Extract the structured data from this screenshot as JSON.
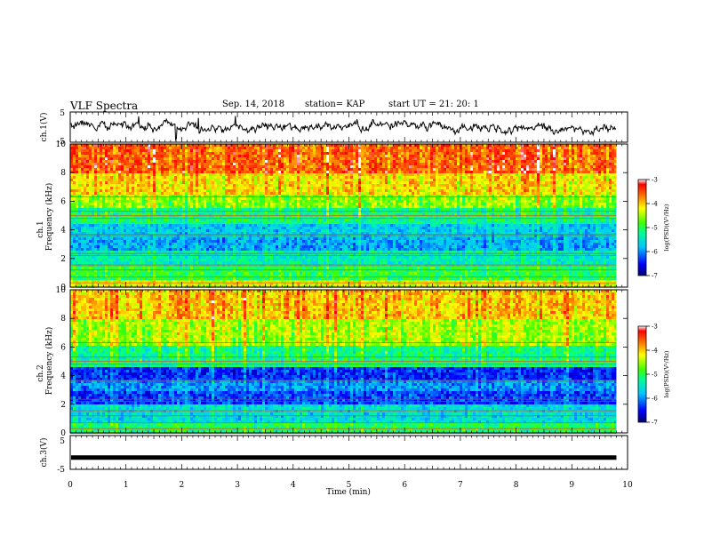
{
  "header": {
    "title": "VLF Spectra",
    "date": "Sep. 14, 2018",
    "station": "station= KAP",
    "start_ut": "start  UT =   21: 20: 1"
  },
  "chart_data": [
    {
      "type": "line",
      "panel": "ch1-waveform",
      "ylabel": "ch.1(V)",
      "ylim": [
        -5,
        5
      ],
      "yticks": [
        "5",
        "-5"
      ],
      "xlim": [
        0,
        10
      ],
      "x_min_step": 0.1,
      "y_envelope_approx": [
        -2,
        2
      ]
    },
    {
      "type": "heatmap",
      "panel": "ch1-spectrogram",
      "ylabel_channel": "ch.1",
      "ylabel": "Frequency (kHz)",
      "ylim": [
        0,
        10
      ],
      "yticks": [
        "0",
        "2",
        "4",
        "6",
        "8",
        "10"
      ],
      "xlim": [
        0,
        9.8
      ],
      "colorbar": {
        "label": "log(PSD)(V²/Hz)",
        "range": [
          -7,
          -3
        ],
        "ticks": [
          "-3",
          "-4",
          "-5",
          "-6",
          "-7"
        ]
      },
      "band_levels_by_freq_kHz": [
        {
          "f": [
            0.0,
            0.5
          ],
          "level": -4.3
        },
        {
          "f": [
            0.5,
            1.5
          ],
          "level": -5.0
        },
        {
          "f": [
            1.5,
            2.5
          ],
          "level": -5.4
        },
        {
          "f": [
            2.5,
            3.5
          ],
          "level": -5.9
        },
        {
          "f": [
            3.5,
            4.5
          ],
          "level": -5.7
        },
        {
          "f": [
            4.5,
            5.5
          ],
          "level": -5.2
        },
        {
          "f": [
            5.5,
            6.5
          ],
          "level": -4.6
        },
        {
          "f": [
            6.5,
            8.0
          ],
          "level": -4.1
        },
        {
          "f": [
            8.0,
            10.0
          ],
          "level": -3.6
        }
      ]
    },
    {
      "type": "heatmap",
      "panel": "ch2-spectrogram",
      "ylabel_channel": "ch.2",
      "ylabel": "Frequency (kHz)",
      "ylim": [
        0,
        10
      ],
      "yticks": [
        "0",
        "2",
        "4",
        "6",
        "8",
        "10"
      ],
      "xlim": [
        0,
        9.8
      ],
      "colorbar": {
        "label": "log(PSD)(V²/Hz)",
        "range": [
          -7,
          -3
        ],
        "ticks": [
          "-3",
          "-4",
          "-5",
          "-6",
          "-7"
        ]
      },
      "band_levels_by_freq_kHz": [
        {
          "f": [
            0.0,
            0.6
          ],
          "level": -5.1
        },
        {
          "f": [
            0.6,
            2.0
          ],
          "level": -5.6
        },
        {
          "f": [
            2.0,
            3.0
          ],
          "level": -6.3
        },
        {
          "f": [
            3.0,
            3.6
          ],
          "level": -6.0
        },
        {
          "f": [
            3.6,
            4.6
          ],
          "level": -6.4
        },
        {
          "f": [
            4.6,
            6.0
          ],
          "level": -5.2
        },
        {
          "f": [
            6.0,
            8.0
          ],
          "level": -4.5
        },
        {
          "f": [
            8.0,
            10.0
          ],
          "level": -4.0
        }
      ]
    },
    {
      "type": "line",
      "panel": "ch3-waveform",
      "ylabel": "ch.3(V)",
      "ylim": [
        -5,
        5
      ],
      "yticks": [
        "5",
        "-5"
      ],
      "xlim": [
        0,
        10
      ],
      "values_const": -1.5
    }
  ],
  "xaxis": {
    "label": "Time (min)",
    "ticks": [
      "0",
      "1",
      "2",
      "3",
      "4",
      "5",
      "6",
      "7",
      "8",
      "9",
      "10"
    ]
  },
  "colors": {
    "scale": [
      "#000080",
      "#0000ff",
      "#00c0ff",
      "#00ffa0",
      "#30ff00",
      "#ffff00",
      "#ff8000",
      "#ff0000",
      "#ffffff"
    ]
  }
}
